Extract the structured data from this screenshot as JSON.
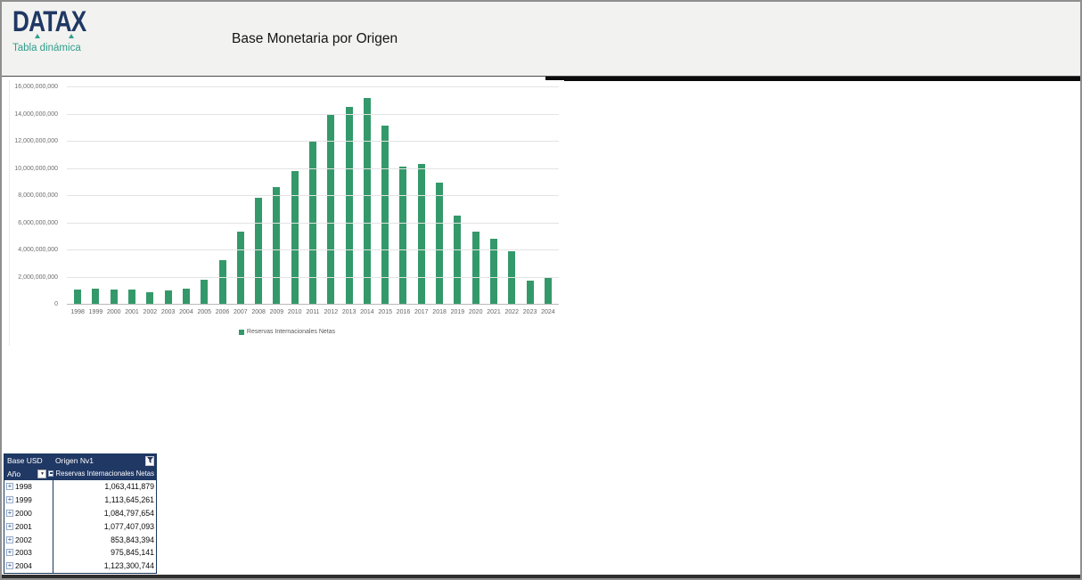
{
  "header": {
    "logo": "DATAX",
    "logo_subtitle": "Tabla dinámica",
    "title": "Base Monetaria por Origen"
  },
  "colors": {
    "bar_green": "#34996A",
    "logo_navy": "#1F3864",
    "logo_teal": "#2E9E8B",
    "pivot_header_navy": "#203864"
  },
  "chart_data": {
    "type": "bar",
    "title": "",
    "xlabel": "",
    "ylabel": "",
    "grid": true,
    "legend_position": "bottom",
    "legend_label": "Reservas Internacionales Netas",
    "ylim": [
      0,
      16000000000
    ],
    "ytick_step": 2000000000,
    "ytick_labels": [
      "0",
      "2,000,000,000",
      "4,000,000,000",
      "6,000,000,000",
      "8,000,000,000",
      "10,000,000,000",
      "12,000,000,000",
      "14,000,000,000",
      "16,000,000,000"
    ],
    "categories": [
      "1998",
      "1999",
      "2000",
      "2001",
      "2002",
      "2003",
      "2004",
      "2005",
      "2006",
      "2007",
      "2008",
      "2009",
      "2010",
      "2011",
      "2012",
      "2013",
      "2014",
      "2015",
      "2016",
      "2017",
      "2018",
      "2019",
      "2020",
      "2021",
      "2022",
      "2023",
      "2024"
    ],
    "series": [
      {
        "name": "Reservas Internacionales Netas",
        "values": [
          1063411879,
          1113645261,
          1084797654,
          1077407093,
          853843394,
          975845141,
          1123300744,
          1750000000,
          3200000000,
          5300000000,
          7800000000,
          8600000000,
          9750000000,
          12000000000,
          13950000000,
          14500000000,
          15150000000,
          13150000000,
          10100000000,
          10300000000,
          8950000000,
          6500000000,
          5300000000,
          4800000000,
          3850000000,
          1700000000,
          2000000000
        ]
      }
    ]
  },
  "pivot": {
    "col1_header": "Base USD",
    "col2_header": "Origen Nv1",
    "row_label_header": "Año",
    "value_header": "Reservas Internacionales Netas",
    "rows": [
      {
        "year": "1998",
        "value": "1,063,411,879"
      },
      {
        "year": "1999",
        "value": "1,113,645,261"
      },
      {
        "year": "2000",
        "value": "1,084,797,654"
      },
      {
        "year": "2001",
        "value": "1,077,407,093"
      },
      {
        "year": "2002",
        "value": "853,843,394"
      },
      {
        "year": "2003",
        "value": "975,845,141"
      },
      {
        "year": "2004",
        "value": "1,123,300,744"
      }
    ]
  }
}
